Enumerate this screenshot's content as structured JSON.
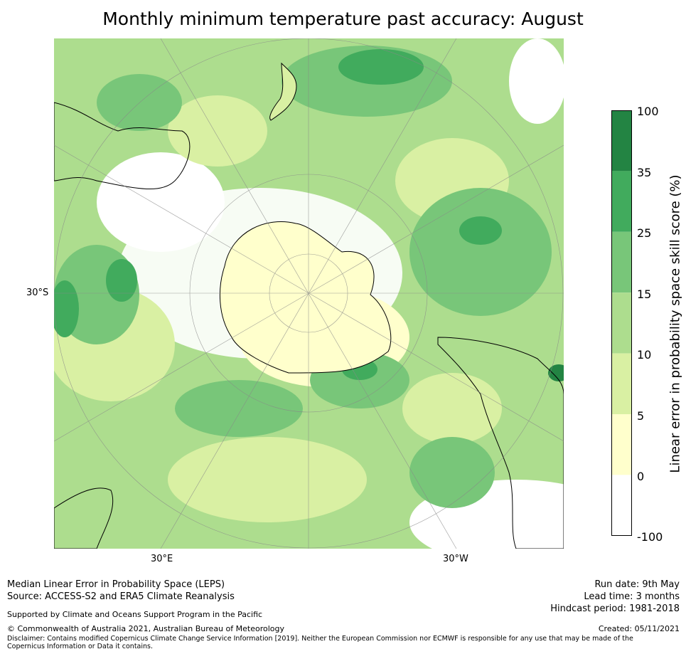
{
  "title": "Monthly minimum temperature past accuracy: August",
  "map": {
    "projection": "south-polar-stereographic",
    "lat_label": "30°S",
    "lon_labels": [
      "30°E",
      "30°W"
    ],
    "palette": {
      "white": "#ffffff",
      "pale_yellow": "#ffffcc",
      "light_yellow_green": "#d9f0a3",
      "light_green": "#addd8e",
      "green": "#78c679",
      "mid_green": "#41ab5d",
      "dark_green": "#238443",
      "coastline": "#000000",
      "graticule": "#888888"
    }
  },
  "colorbar": {
    "label": "Linear error in probability space skill score (%)",
    "ticks": [
      "100",
      "35",
      "25",
      "15",
      "10",
      "5",
      "0",
      "-100"
    ],
    "colors": [
      "#238443",
      "#41ab5d",
      "#78c679",
      "#addd8e",
      "#d9f0a3",
      "#ffffcc",
      "#ffffff"
    ]
  },
  "footer": {
    "line1": "Median Linear Error in Probability Space (LEPS)",
    "line2": "Source: ACCESS-S2 and ERA5 Climate Reanalysis",
    "support": "Supported by Climate and Oceans Support Program in the Pacific",
    "copyright": "© Commonwealth of Australia 2021, Australian Bureau of Meteorology",
    "disclaimer": "Disclaimer: Contains modified Copernicus Climate Change Service Information [2019]. Neither the European Commission nor ECMWF is responsible for any use that may be made of the Copernicus Information or Data it contains.",
    "run_date": "Run date: 9th May",
    "lead_time": "Lead time: 3 months",
    "hindcast": "Hindcast period: 1981-2018",
    "created": "Created: 05/11/2021"
  }
}
